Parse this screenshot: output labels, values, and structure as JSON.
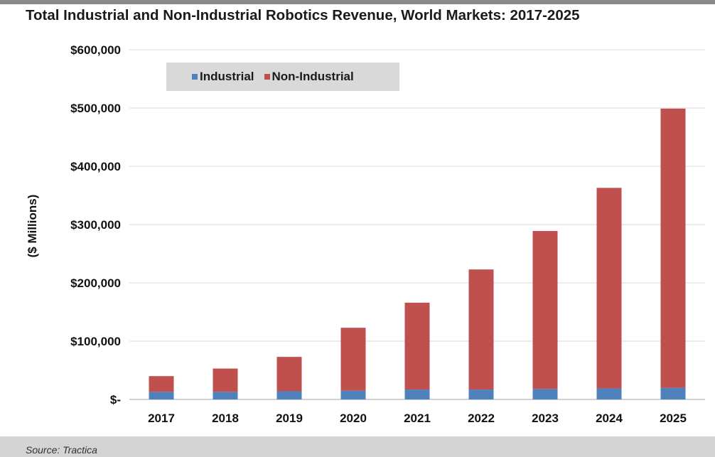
{
  "chart_data": {
    "type": "bar",
    "stacked": true,
    "title": "Total Industrial and Non-Industrial Robotics Revenue, World Markets: 2017-2025",
    "ylabel": "($ Millions)",
    "xlabel": "",
    "categories": [
      "2017",
      "2018",
      "2019",
      "2020",
      "2021",
      "2022",
      "2023",
      "2024",
      "2025"
    ],
    "series": [
      {
        "name": "Industrial",
        "color": "#4f81bd",
        "values": [
          13000,
          13000,
          14000,
          15000,
          17000,
          17000,
          18000,
          19000,
          20000
        ]
      },
      {
        "name": "Non-Industrial",
        "color": "#c0504d",
        "values": [
          27000,
          40000,
          59000,
          108000,
          149000,
          206000,
          271000,
          344000,
          479000
        ]
      }
    ],
    "ylim": [
      0,
      600000
    ],
    "yticks": [
      0,
      100000,
      200000,
      300000,
      400000,
      500000,
      600000
    ],
    "ytick_labels": [
      "$-",
      "$100,000",
      "$200,000",
      "$300,000",
      "$400,000",
      "$500,000",
      "$600,000"
    ],
    "grid": true,
    "legend_position": "top-left"
  },
  "footer": {
    "source": "Source: Tractica"
  }
}
